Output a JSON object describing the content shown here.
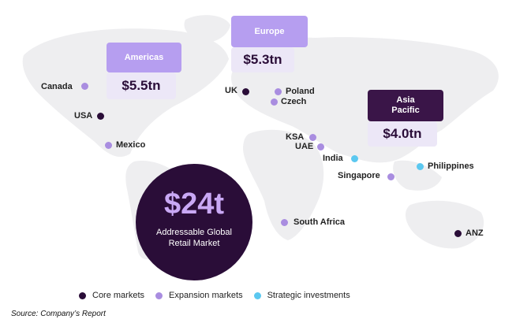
{
  "colors": {
    "core": "#2a0d38",
    "expansion": "#a98de0",
    "strategic": "#5bc8f0",
    "region_title_bg": "#b69ef0",
    "region_title_active": "#3a1548"
  },
  "regions": {
    "americas": {
      "title": "Americas",
      "value": "$5.5tn"
    },
    "europe": {
      "title": "Europe",
      "value": "$5.3tn"
    },
    "asia_pacific": {
      "title": "Asia\nPacific",
      "value": "$4.0tn"
    }
  },
  "markets": {
    "canada": {
      "label": "Canada",
      "type": "expansion"
    },
    "usa": {
      "label": "USA",
      "type": "core"
    },
    "mexico": {
      "label": "Mexico",
      "type": "expansion"
    },
    "uk": {
      "label": "UK",
      "type": "core"
    },
    "poland": {
      "label": "Poland",
      "type": "expansion"
    },
    "czech": {
      "label": "Czech",
      "type": "expansion"
    },
    "ksa": {
      "label": "KSA",
      "type": "expansion"
    },
    "uae": {
      "label": "UAE",
      "type": "expansion"
    },
    "india": {
      "label": "India",
      "type": "strategic"
    },
    "singapore": {
      "label": "Singapore",
      "type": "expansion"
    },
    "philippines": {
      "label": "Philippines",
      "type": "strategic"
    },
    "south_africa": {
      "label": "South Africa",
      "type": "expansion"
    },
    "anz": {
      "label": "ANZ",
      "type": "core"
    }
  },
  "total": {
    "value": "$24t",
    "label": "Addressable Global Retail Market"
  },
  "legend": {
    "core": "Core markets",
    "expansion": "Expansion markets",
    "strategic": "Strategic investments"
  },
  "source": "Source: Company’s Report"
}
